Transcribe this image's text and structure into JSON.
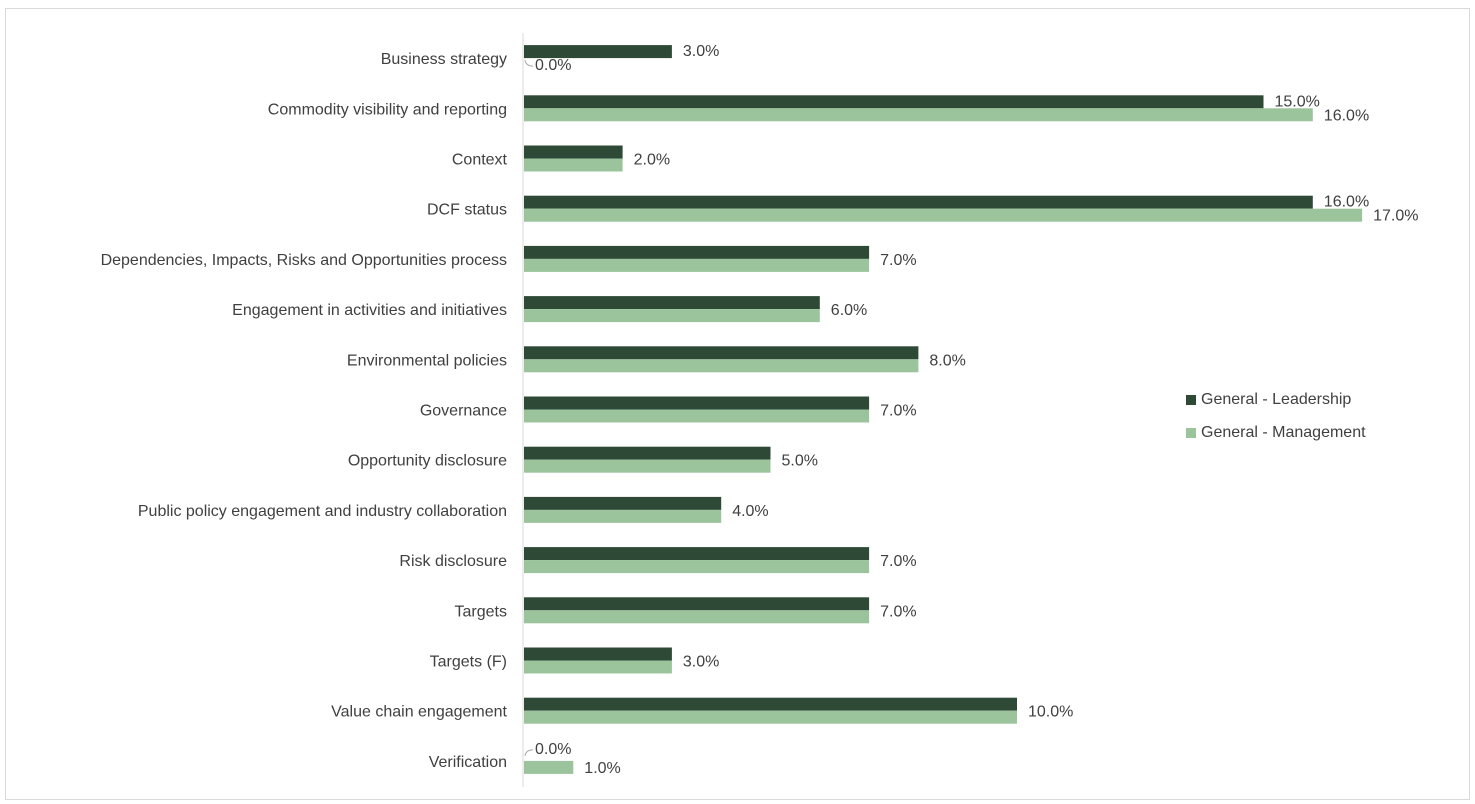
{
  "chart_data": {
    "type": "bar",
    "orientation": "horizontal",
    "title": "",
    "xlabel": "",
    "ylabel": "",
    "categories": [
      "Business strategy",
      "Commodity visibility and reporting",
      "Context",
      "DCF status",
      "Dependencies, Impacts, Risks and Opportunities process",
      "Engagement in activities and initiatives",
      "Environmental policies",
      "Governance",
      "Opportunity disclosure",
      "Public policy engagement and industry collaboration",
      "Risk disclosure",
      "Targets",
      "Targets (F)",
      "Value chain engagement",
      "Verification"
    ],
    "series": [
      {
        "name": "General - Leadership",
        "color": "#2e4a36",
        "values": [
          3.0,
          15.0,
          2.0,
          16.0,
          7.0,
          6.0,
          8.0,
          7.0,
          5.0,
          4.0,
          7.0,
          7.0,
          3.0,
          10.0,
          0.0
        ],
        "labels": [
          "3.0%",
          "15.0%",
          "",
          "16.0%",
          "",
          "",
          "8.0%",
          "7.0%",
          "",
          "",
          "7.0%",
          "7.0%",
          "",
          "",
          "0.0%"
        ]
      },
      {
        "name": "General - Management",
        "color": "#9cc49c",
        "values": [
          0.0,
          16.0,
          2.0,
          17.0,
          7.0,
          6.0,
          8.0,
          7.0,
          5.0,
          4.0,
          7.0,
          7.0,
          3.0,
          10.0,
          1.0
        ],
        "labels": [
          "0.0%",
          "16.0%",
          "2.0%",
          "17.0%",
          "7.0%",
          "6.0%",
          "",
          "",
          "5.0%",
          "4.0%",
          "",
          "",
          "3.0%",
          "10.0%",
          "1.0%"
        ]
      }
    ],
    "xlim": [
      0,
      18
    ],
    "grid": false,
    "legend_position": "right"
  }
}
